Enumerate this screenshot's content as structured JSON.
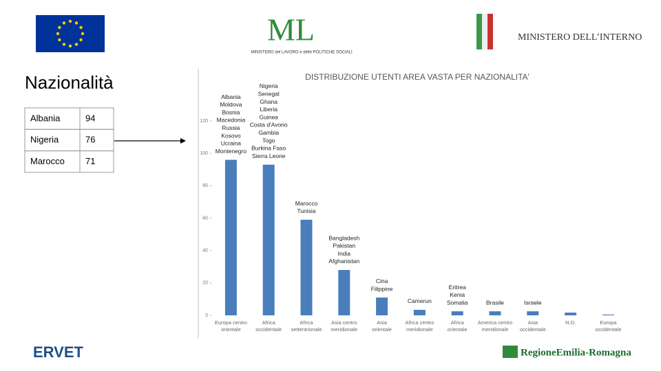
{
  "header": {
    "ml_logo": "ML",
    "ml_caption": "MINISTERO del LAVORO e delle POLITICHE SOCIALI",
    "interno_logo": "MINISTERO DELL’INTERNO"
  },
  "title": "Nazionalità",
  "table": {
    "rows": [
      [
        "Albania",
        "94"
      ],
      [
        "Nigeria",
        "76"
      ],
      [
        "Marocco",
        "71"
      ]
    ]
  },
  "footer": {
    "ervet": "ERVET",
    "regione": "RegioneEmilia-Romagna"
  },
  "chart_data": {
    "type": "bar",
    "title": "DISTRIBUZIONE UTENTI AREA VASTA PER NAZIONALITA'",
    "categories": [
      "Europa centro orientale",
      "Africa occidentale",
      "Africa settentrionale",
      "Asia centro meridionale",
      "Asia orientale",
      "Africa centro meridionale",
      "Africa orientale",
      "America centro meridionale",
      "Asia occidentale",
      "N.D.",
      "Europa occidentale"
    ],
    "values": [
      96,
      93,
      59,
      28,
      11,
      3.4,
      2.5,
      2.5,
      2.5,
      1.7,
      0.5
    ],
    "annotations": [
      [
        "Albania",
        "Moldova",
        "Bosnia",
        "Macedonia",
        "Russia",
        "Kosovo",
        "Ucraina",
        "Montenegro"
      ],
      [
        "Nigeria",
        "Senegal",
        "Ghana",
        "Liberia",
        "Guinea",
        "Costa d'Avorio",
        "Gambia",
        "Togo",
        "Burkina Faso",
        "Sierra Leone"
      ],
      [
        "Marocco",
        "Tunisia"
      ],
      [
        "Bangladesh",
        "Pakistan",
        "India",
        "Afghanistan"
      ],
      [
        "Cina",
        "Filippine"
      ],
      [
        "Camerun"
      ],
      [
        "Eritrea",
        "Kenia",
        "Somalia"
      ],
      [
        "Brasile"
      ],
      [
        "Israele"
      ],
      [],
      []
    ],
    "color": "#4a7ebb",
    "ylim": [
      0,
      120
    ],
    "yticks": [
      0,
      20,
      40,
      60,
      80,
      100,
      120
    ],
    "grid": false
  }
}
